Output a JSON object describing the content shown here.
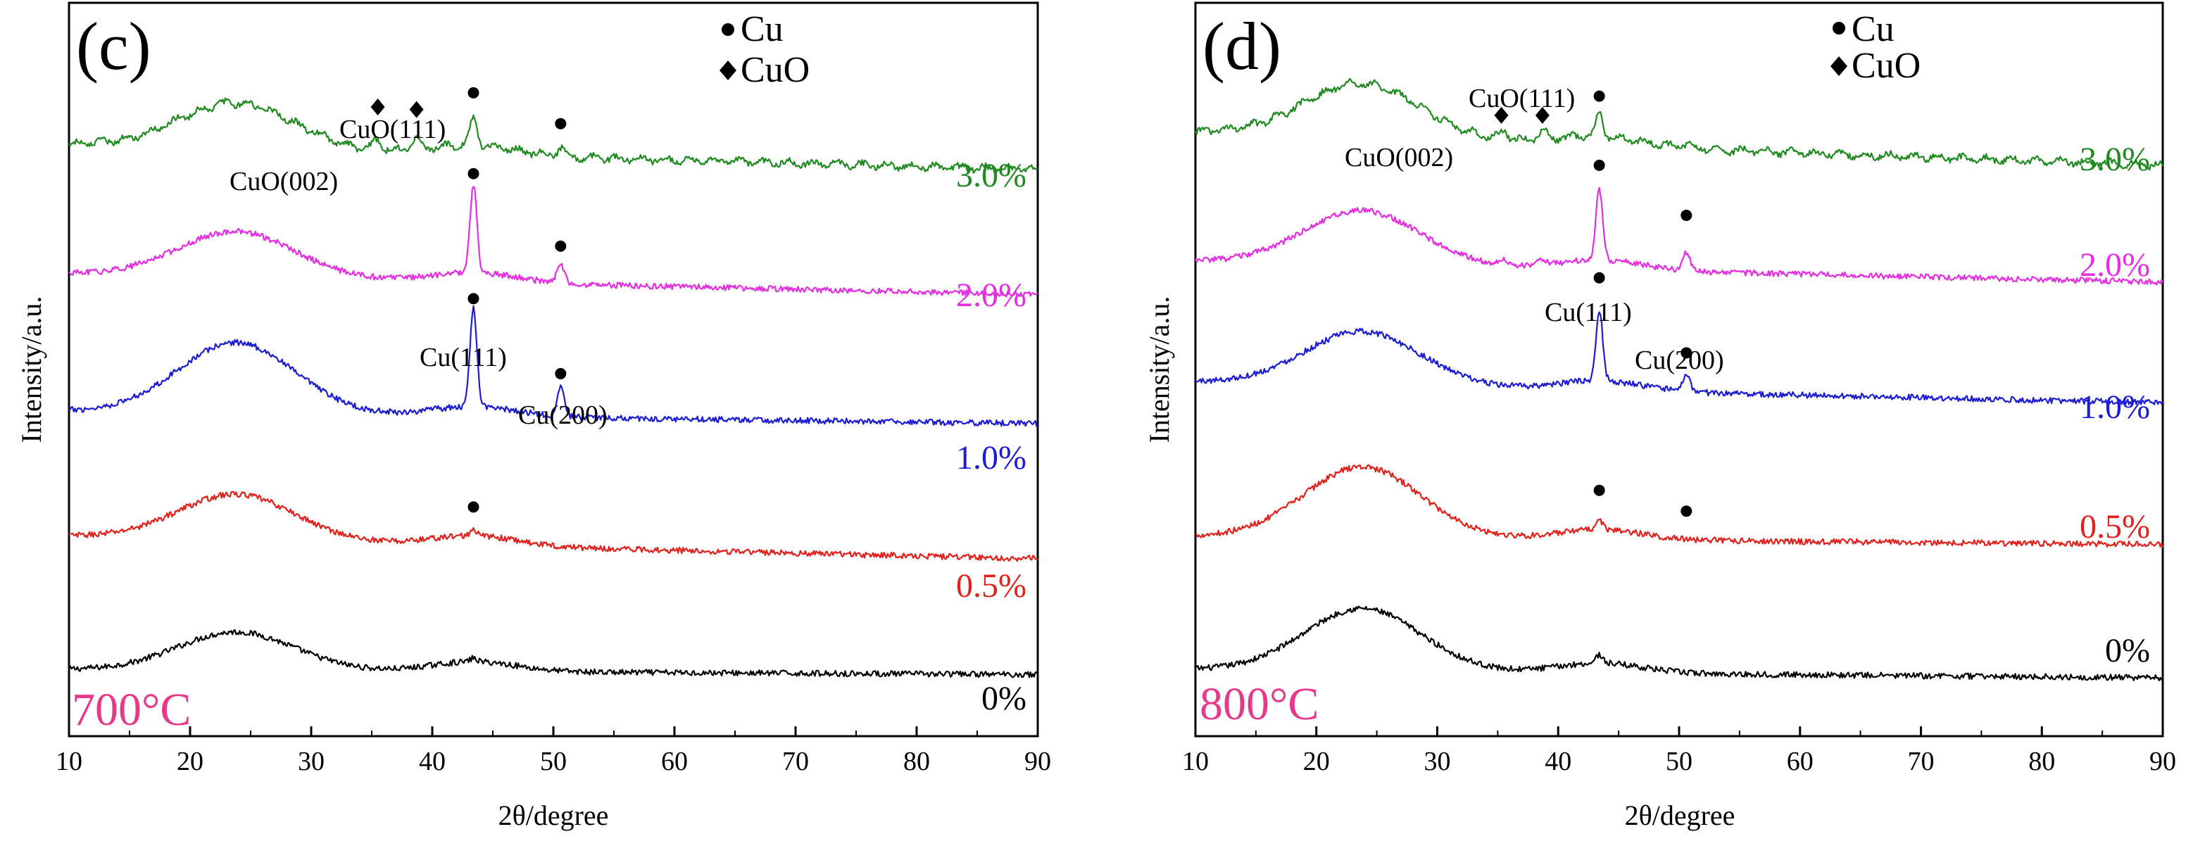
{
  "colors": {
    "axis": "#000000",
    "c0": "#000000",
    "c05": "#e3201b",
    "c10": "#1c1cd6",
    "c20": "#e62de3",
    "c30": "#1f8a1f",
    "temp": "#e8388a"
  },
  "chart_data": [
    {
      "type": "line",
      "panel_label": "(c)",
      "temperature_label": "700°C",
      "xlabel": "2θ/degree",
      "ylabel": "Intensity/a.u.",
      "xlim": [
        10,
        90
      ],
      "xticks": [
        "10",
        "20",
        "30",
        "40",
        "50",
        "60",
        "70",
        "80",
        "90"
      ],
      "legend": [
        {
          "marker": "circle",
          "label": "Cu"
        },
        {
          "marker": "diamond",
          "label": "CuO"
        }
      ],
      "series": [
        {
          "name": "0%",
          "color_key": "c0",
          "baseline": 0.0,
          "end": -0.06,
          "hump": 0.46,
          "cu111": 0.04,
          "cu200": 0.0,
          "cuo": 0.0
        },
        {
          "name": "0.5%",
          "color_key": "c05",
          "baseline": 1.6,
          "end": 1.33,
          "hump": 0.55,
          "cu111": 0.06,
          "cu200": 0.0,
          "cuo": 0.0
        },
        {
          "name": "1.0%",
          "color_key": "c10",
          "baseline": 3.1,
          "end": 2.95,
          "hump": 0.85,
          "cu111": 1.2,
          "cu200": 0.35,
          "cuo": 0.0
        },
        {
          "name": "2.0%",
          "color_key": "c20",
          "baseline": 4.75,
          "end": 4.5,
          "hump": 0.55,
          "cu111": 1.05,
          "cu200": 0.22,
          "cuo": 0.0
        },
        {
          "name": "3.0%",
          "color_key": "c30",
          "baseline": 6.3,
          "end": 6.0,
          "hump": 0.55,
          "cu111": 0.32,
          "cu200": 0.1,
          "cuo": 0.12
        }
      ],
      "annotations": [
        {
          "text": "CuO(111)",
          "series": "3.0%"
        },
        {
          "text": "CuO(002)",
          "series": "3.0%"
        },
        {
          "text": "Cu(111)",
          "series": "1.0%"
        },
        {
          "text": "Cu(200)",
          "series": "1.0%"
        }
      ],
      "markers": [
        {
          "series": "0.5%",
          "shape": "circle",
          "x": 43.4,
          "y": 1.95
        },
        {
          "series": "1.0%",
          "shape": "circle",
          "x": 43.4,
          "y": 4.45
        },
        {
          "series": "1.0%",
          "shape": "circle",
          "x": 50.6,
          "y": 3.55
        },
        {
          "series": "2.0%",
          "shape": "circle",
          "x": 43.4,
          "y": 5.95
        },
        {
          "series": "2.0%",
          "shape": "circle",
          "x": 50.6,
          "y": 5.08
        },
        {
          "series": "3.0%",
          "shape": "circle",
          "x": 43.4,
          "y": 6.92
        },
        {
          "series": "3.0%",
          "shape": "circle",
          "x": 50.6,
          "y": 6.55
        },
        {
          "series": "3.0%",
          "shape": "diamond",
          "x": 35.5,
          "y": 6.75
        },
        {
          "series": "3.0%",
          "shape": "diamond",
          "x": 38.7,
          "y": 6.72
        }
      ]
    },
    {
      "type": "line",
      "panel_label": "(d)",
      "temperature_label": "800°C",
      "xlabel": "2θ/degree",
      "ylabel": "Intensity/a.u.",
      "xlim": [
        10,
        90
      ],
      "xticks": [
        "10",
        "20",
        "30",
        "40",
        "50",
        "60",
        "70",
        "80",
        "90"
      ],
      "legend": [
        {
          "marker": "circle",
          "label": "Cu"
        },
        {
          "marker": "diamond",
          "label": "CuO"
        }
      ],
      "series": [
        {
          "name": "0%",
          "color_key": "c0",
          "baseline": 0.0,
          "end": -0.1,
          "hump": 0.75,
          "cu111": 0.1,
          "cu200": 0.0,
          "cuo": 0.0
        },
        {
          "name": "0.5%",
          "color_key": "c05",
          "baseline": 1.6,
          "end": 1.5,
          "hump": 0.85,
          "cu111": 0.12,
          "cu200": 0.0,
          "cuo": 0.0
        },
        {
          "name": "1.0%",
          "color_key": "c10",
          "baseline": 3.45,
          "end": 3.2,
          "hump": 0.65,
          "cu111": 0.85,
          "cu200": 0.2,
          "cuo": 0.0
        },
        {
          "name": "2.0%",
          "color_key": "c20",
          "baseline": 4.9,
          "end": 4.65,
          "hump": 0.65,
          "cu111": 0.85,
          "cu200": 0.22,
          "cuo": 0.06
        },
        {
          "name": "3.0%",
          "color_key": "c30",
          "baseline": 6.45,
          "end": 6.05,
          "hump": 0.65,
          "cu111": 0.28,
          "cu200": 0.05,
          "cuo": 0.1
        }
      ],
      "annotations": [
        {
          "text": "CuO(111)",
          "series": "3.0%"
        },
        {
          "text": "CuO(002)",
          "series": "3.0%"
        },
        {
          "text": "Cu(111)",
          "series": "1.0%"
        },
        {
          "text": "Cu(200)",
          "series": "1.0%"
        }
      ],
      "markers": [
        {
          "series": "0.5%",
          "shape": "circle",
          "x": 43.4,
          "y": 2.15
        },
        {
          "series": "0.5%",
          "shape": "circle",
          "x": 50.6,
          "y": 1.9
        },
        {
          "series": "1.0%",
          "shape": "circle",
          "x": 43.4,
          "y": 4.7
        },
        {
          "series": "1.0%",
          "shape": "circle",
          "x": 50.6,
          "y": 3.8
        },
        {
          "series": "2.0%",
          "shape": "circle",
          "x": 43.4,
          "y": 6.05
        },
        {
          "series": "2.0%",
          "shape": "circle",
          "x": 50.6,
          "y": 5.45
        },
        {
          "series": "3.0%",
          "shape": "circle",
          "x": 43.4,
          "y": 6.88
        },
        {
          "series": "3.0%",
          "shape": "diamond",
          "x": 35.3,
          "y": 6.65
        },
        {
          "series": "3.0%",
          "shape": "diamond",
          "x": 38.7,
          "y": 6.65
        }
      ]
    }
  ]
}
